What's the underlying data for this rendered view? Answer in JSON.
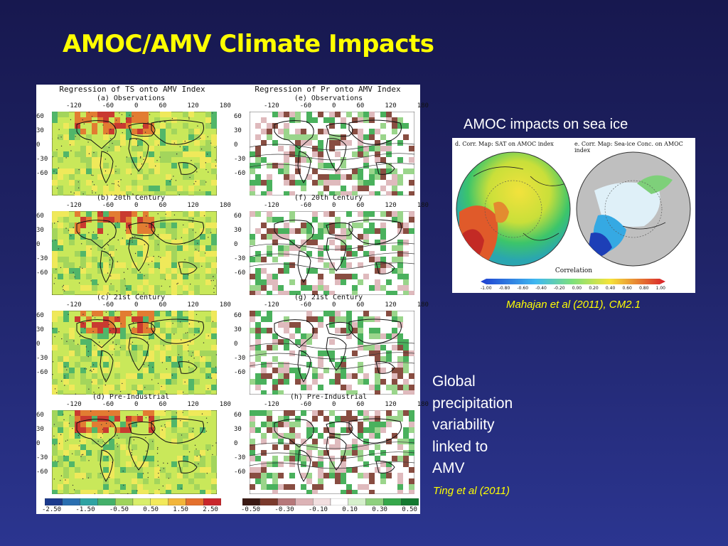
{
  "slide": {
    "title": "AMOC/AMV Climate Impacts"
  },
  "figure_left": {
    "col_titles": [
      "Regression of TS onto AMV Index",
      "Regression of Pr onto AMV Index"
    ],
    "ts_labels": [
      "(a) Observations",
      "(b) 20th Century",
      "(c) 21st Century",
      "(d) Pre-Industrial"
    ],
    "pr_labels": [
      "(e) Observations",
      "(f) 20th Century",
      "(g) 21st Century",
      "(h) Pre-Industrial"
    ],
    "lon_ticks": [
      "-120",
      "-60",
      "0",
      "60",
      "120",
      "180"
    ],
    "lat_ticks": [
      "60",
      "30",
      "0",
      "-30",
      "-60"
    ],
    "ts_colorbar_ticks": [
      "-2.50",
      "-1.50",
      "-0.50",
      "0.50",
      "1.50",
      "2.50"
    ],
    "pr_colorbar_ticks": [
      "-0.50",
      "-0.30",
      "-0.10",
      "0.10",
      "0.30",
      "0.50"
    ],
    "ts_colors": [
      "#1b3a8c",
      "#2a6fb0",
      "#2fa3a3",
      "#44b06a",
      "#9fd35c",
      "#d9ee6a",
      "#f3e95a",
      "#f2b53a",
      "#e4702d",
      "#c9272b"
    ],
    "pr_colors": [
      "#3b1a14",
      "#7b3a2c",
      "#b6787a",
      "#dcb3b6",
      "#f2dfe0",
      "#ffffff",
      "#d6f0cc",
      "#8fd07e",
      "#36a84b",
      "#147a30"
    ]
  },
  "sea_ice": {
    "heading": "AMOC impacts on sea ice",
    "sub_titles": [
      "d. Corr. Map: SAT on AMOC index",
      "e. Corr. Map: Sea-ice Conc. on AMOC index"
    ],
    "colorbar_label": "Correlation",
    "colorbar_ticks": [
      "-1.00",
      "-0.80",
      "-0.60",
      "-0.40",
      "-0.20",
      "0.00",
      "0.20",
      "0.40",
      "0.60",
      "0.80",
      "1.00"
    ],
    "citation": "Mahajan et al (2011), CM2.1"
  },
  "precip": {
    "lines": [
      "Global",
      "precipitation",
      "variability",
      "linked to",
      "AMV"
    ],
    "citation": "Ting et al (2011)"
  }
}
